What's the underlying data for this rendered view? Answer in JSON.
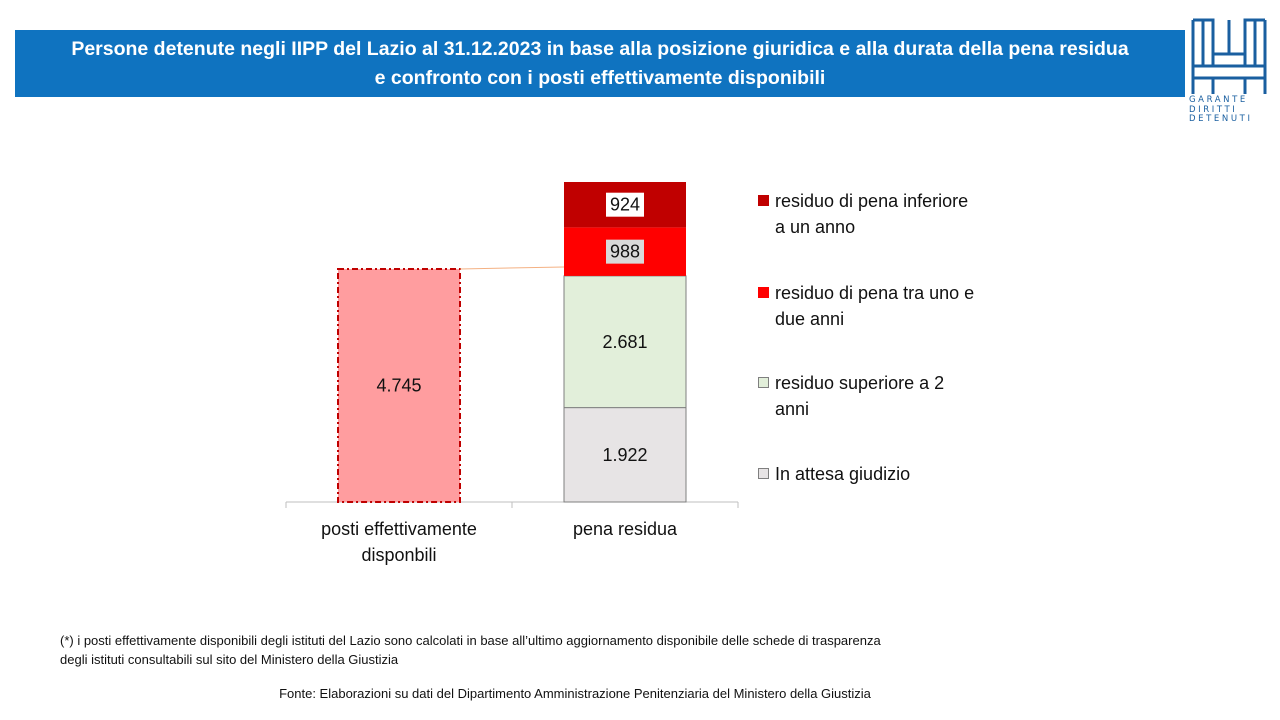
{
  "title": {
    "line1": "Persone detenute negli IIPP del Lazio al 31.12.2023  in base alla posizione giuridica e alla durata della pena residua",
    "line2": "e confronto con i posti effettivamente disponibili"
  },
  "logo": {
    "text_lines": [
      "GARANTE",
      "DIRITTI",
      "DETENUTI"
    ],
    "icon": "garante-logo-icon"
  },
  "chart_data": {
    "type": "bar",
    "stacked": true,
    "categories": [
      "posti effettivamente disponbili",
      "pena residua"
    ],
    "category_lines": [
      [
        "posti effettivamente",
        "disponbili"
      ],
      [
        "pena residua"
      ]
    ],
    "ylim": [
      0,
      6515
    ],
    "series": [
      {
        "name": "In attesa  giudizio",
        "values": [
          null,
          1922
        ],
        "labels": [
          null,
          "1.922"
        ],
        "color": "#e7e4e5"
      },
      {
        "name": "residuo superiore a 2 anni",
        "values": [
          null,
          2681
        ],
        "labels": [
          null,
          "2.681"
        ],
        "color": "#e2efda"
      },
      {
        "name": "residuo di pena tra uno e due anni",
        "values": [
          null,
          988
        ],
        "labels": [
          null,
          "988"
        ],
        "color": "#ff0000"
      },
      {
        "name": "residuo di pena inferiore a un anno",
        "values": [
          null,
          924
        ],
        "labels": [
          null,
          "924"
        ],
        "color": "#c00000"
      }
    ],
    "capacity": {
      "category": "posti effettivamente disponbili",
      "value": 4745,
      "label": "4.745",
      "color": "#ff9d9f",
      "border": "#c00000"
    },
    "legend": {
      "placement": "right",
      "items": [
        {
          "lines": [
            "residuo di pena inferiore",
            "a un anno"
          ],
          "color": "#c00000"
        },
        {
          "lines": [
            "residuo di pena tra uno e",
            "due anni"
          ],
          "color": "#ff0000"
        },
        {
          "lines": [
            "residuo superiore a 2",
            "anni"
          ],
          "color": "#e2efda"
        },
        {
          "lines": [
            "In attesa  giudizio"
          ],
          "color": "#e7e4e5"
        }
      ]
    },
    "grid": false
  },
  "footnote": {
    "line1": "(*) i posti effettivamente disponibili degli istituti del Lazio sono calcolati in base all’ultimo aggiornamento disponibile delle schede di trasparenza",
    "line2": "degli istituti consultabili sul sito del Ministero della Giustizia"
  },
  "source": "Fonte:  Elaborazioni su dati del Dipartimento  Amministrazione Penitenziaria del Ministero della Giustizia"
}
